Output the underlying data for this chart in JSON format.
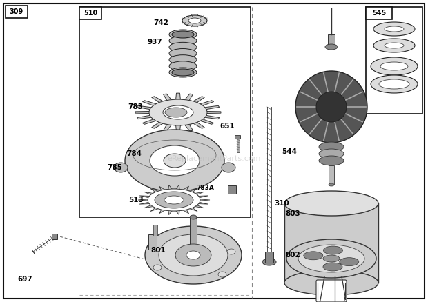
{
  "bg_color": "#ffffff",
  "watermark": "eReplacementParts.com"
}
